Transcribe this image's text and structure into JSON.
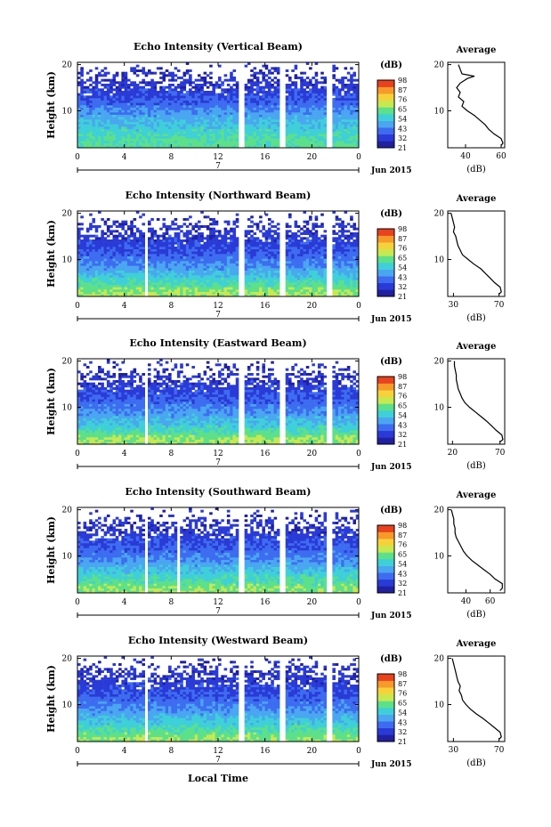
{
  "figure": {
    "x_axis_label": "Local Time",
    "date_label": "Jun 2015",
    "midnight_day_label": "7",
    "y_axis_label": "Height (km)",
    "average_title": "Average",
    "average_xlabel": "(dB)",
    "colorbar_unit": "(dB)"
  },
  "colors": {
    "colormap": [
      "#2020a0",
      "#2a3ad6",
      "#3d6cf0",
      "#4aa6f0",
      "#3ed0d8",
      "#5ce08a",
      "#c8e850",
      "#f6d23a",
      "#f79a2a",
      "#e8421e"
    ],
    "no_data": "#ffffff"
  },
  "chart_data": [
    {
      "type": "heatmap",
      "title": "Echo Intensity (Vertical Beam)",
      "xlabel": "Local Time",
      "ylabel": "Height (km)",
      "x_ticks": [
        "0",
        "4",
        "8",
        "12",
        "16",
        "20",
        "0"
      ],
      "xlim": [
        0,
        24
      ],
      "y_ticks": [
        "10",
        "20"
      ],
      "ylim": [
        2,
        20.5
      ],
      "colorbar": {
        "label": "(dB)",
        "ticks": [
          "21",
          "32",
          "43",
          "54",
          "65",
          "76",
          "87",
          "98"
        ],
        "range": [
          21,
          98
        ]
      },
      "data_gaps_hours": [
        [
          13.8,
          14.2
        ],
        [
          17.3,
          17.7
        ],
        [
          21.3,
          21.7
        ]
      ],
      "profile_by_height": {
        "heights_km": [
          3,
          6,
          9,
          12,
          15,
          18
        ],
        "mean_dB": [
          62,
          56,
          48,
          38,
          32,
          30
        ]
      },
      "average_profile": {
        "xlabel": "(dB)",
        "x_ticks": [
          "40",
          "60"
        ],
        "xlim": [
          30,
          62
        ],
        "heights_km": [
          2.5,
          3,
          4,
          5,
          6,
          7,
          8,
          9,
          10,
          11,
          12,
          13,
          14,
          15,
          16,
          17,
          17.5,
          18,
          19,
          20
        ],
        "values": [
          60,
          61,
          60,
          56,
          53,
          51,
          48,
          45,
          41,
          38,
          39,
          36,
          37,
          35,
          37,
          41,
          45,
          38,
          37,
          36
        ]
      }
    },
    {
      "type": "heatmap",
      "title": "Echo Intensity (Northward Beam)",
      "xlabel": "Local Time",
      "ylabel": "Height (km)",
      "x_ticks": [
        "0",
        "4",
        "8",
        "12",
        "16",
        "20",
        "0"
      ],
      "xlim": [
        0,
        24
      ],
      "y_ticks": [
        "10",
        "20"
      ],
      "ylim": [
        2,
        20.5
      ],
      "colorbar": {
        "label": "(dB)",
        "ticks": [
          "21",
          "32",
          "43",
          "54",
          "65",
          "76",
          "87",
          "98"
        ],
        "range": [
          21,
          98
        ]
      },
      "data_gaps_hours": [
        [
          5.7,
          6.0
        ],
        [
          13.8,
          14.2
        ],
        [
          17.3,
          17.7
        ],
        [
          21.3,
          21.7
        ]
      ],
      "profile_by_height": {
        "heights_km": [
          3,
          6,
          9,
          12,
          15,
          18
        ],
        "mean_dB": [
          68,
          55,
          44,
          36,
          32,
          30
        ]
      },
      "average_profile": {
        "xlabel": "(dB)",
        "x_ticks": [
          "30",
          "70"
        ],
        "xlim": [
          25,
          75
        ],
        "heights_km": [
          2.5,
          3,
          4,
          5,
          6,
          7,
          8,
          9,
          10,
          11,
          12,
          13,
          14,
          15,
          16,
          17,
          18,
          19,
          20
        ],
        "values": [
          70,
          72,
          71,
          66,
          62,
          58,
          54,
          48,
          43,
          38,
          36,
          34,
          33,
          32,
          30,
          31,
          30,
          29,
          28
        ]
      }
    },
    {
      "type": "heatmap",
      "title": "Echo Intensity (Eastward Beam)",
      "xlabel": "Local Time",
      "ylabel": "Height (km)",
      "x_ticks": [
        "0",
        "4",
        "8",
        "12",
        "16",
        "20",
        "0"
      ],
      "xlim": [
        0,
        24
      ],
      "y_ticks": [
        "10",
        "20"
      ],
      "ylim": [
        2,
        20.5
      ],
      "colorbar": {
        "label": "(dB)",
        "ticks": [
          "21",
          "32",
          "43",
          "54",
          "65",
          "76",
          "87",
          "98"
        ],
        "range": [
          21,
          98
        ]
      },
      "data_gaps_hours": [
        [
          5.7,
          6.0
        ],
        [
          13.8,
          14.2
        ],
        [
          17.3,
          17.7
        ],
        [
          21.3,
          21.7
        ]
      ],
      "profile_by_height": {
        "heights_km": [
          3,
          6,
          9,
          12,
          15,
          18
        ],
        "mean_dB": [
          68,
          55,
          45,
          37,
          32,
          30
        ]
      },
      "average_profile": {
        "xlabel": "(dB)",
        "x_ticks": [
          "20",
          "70"
        ],
        "xlim": [
          15,
          75
        ],
        "heights_km": [
          2.5,
          3,
          4,
          5,
          6,
          7,
          8,
          9,
          10,
          11,
          12,
          13,
          14,
          15,
          16,
          17,
          18,
          19,
          20
        ],
        "values": [
          70,
          73,
          72,
          66,
          61,
          56,
          50,
          44,
          38,
          33,
          30,
          28,
          26,
          25,
          24,
          24,
          23,
          22,
          22
        ]
      }
    },
    {
      "type": "heatmap",
      "title": "Echo Intensity (Southward Beam)",
      "xlabel": "Local Time",
      "ylabel": "Height (km)",
      "x_ticks": [
        "0",
        "4",
        "8",
        "12",
        "16",
        "20",
        "0"
      ],
      "xlim": [
        0,
        24
      ],
      "y_ticks": [
        "10",
        "20"
      ],
      "ylim": [
        2,
        20.5
      ],
      "colorbar": {
        "label": "(dB)",
        "ticks": [
          "21",
          "32",
          "43",
          "54",
          "65",
          "76",
          "87",
          "98"
        ],
        "range": [
          21,
          98
        ]
      },
      "data_gaps_hours": [
        [
          5.7,
          6.0
        ],
        [
          8.4,
          8.7
        ],
        [
          13.8,
          14.2
        ],
        [
          17.3,
          17.7
        ],
        [
          21.3,
          21.7
        ]
      ],
      "profile_by_height": {
        "heights_km": [
          3,
          6,
          9,
          12,
          15,
          18
        ],
        "mean_dB": [
          66,
          56,
          45,
          37,
          32,
          30
        ]
      },
      "average_profile": {
        "xlabel": "(dB)",
        "x_ticks": [
          "40",
          "60"
        ],
        "xlim": [
          25,
          72
        ],
        "heights_km": [
          2.5,
          3,
          4,
          5,
          6,
          7,
          8,
          9,
          10,
          11,
          12,
          13,
          14,
          15,
          16,
          17,
          18,
          19,
          20
        ],
        "values": [
          68,
          70,
          70,
          64,
          60,
          55,
          50,
          45,
          41,
          38,
          36,
          34,
          32,
          31,
          31,
          30,
          30,
          29,
          28
        ]
      }
    },
    {
      "type": "heatmap",
      "title": "Echo Intensity (Westward Beam)",
      "xlabel": "Local Time",
      "ylabel": "Height (km)",
      "x_ticks": [
        "0",
        "4",
        "8",
        "12",
        "16",
        "20",
        "0"
      ],
      "xlim": [
        0,
        24
      ],
      "y_ticks": [
        "10",
        "20"
      ],
      "ylim": [
        2,
        20.5
      ],
      "colorbar": {
        "label": "(dB)",
        "ticks": [
          "21",
          "32",
          "43",
          "54",
          "65",
          "76",
          "87",
          "98"
        ],
        "range": [
          21,
          98
        ]
      },
      "data_gaps_hours": [
        [
          5.7,
          6.0
        ],
        [
          13.8,
          14.2
        ],
        [
          17.3,
          17.7
        ],
        [
          21.3,
          21.7
        ]
      ],
      "profile_by_height": {
        "heights_km": [
          3,
          6,
          9,
          12,
          15,
          18
        ],
        "mean_dB": [
          66,
          55,
          45,
          37,
          32,
          30
        ]
      },
      "average_profile": {
        "xlabel": "(dB)",
        "x_ticks": [
          "30",
          "70"
        ],
        "xlim": [
          25,
          75
        ],
        "heights_km": [
          2.5,
          3,
          4,
          5,
          6,
          7,
          8,
          9,
          10,
          11,
          12,
          13,
          14,
          15,
          16,
          17,
          18,
          19,
          20
        ],
        "values": [
          70,
          72,
          71,
          66,
          61,
          56,
          50,
          45,
          41,
          38,
          37,
          35,
          36,
          34,
          33,
          32,
          31,
          30,
          29
        ]
      }
    }
  ]
}
